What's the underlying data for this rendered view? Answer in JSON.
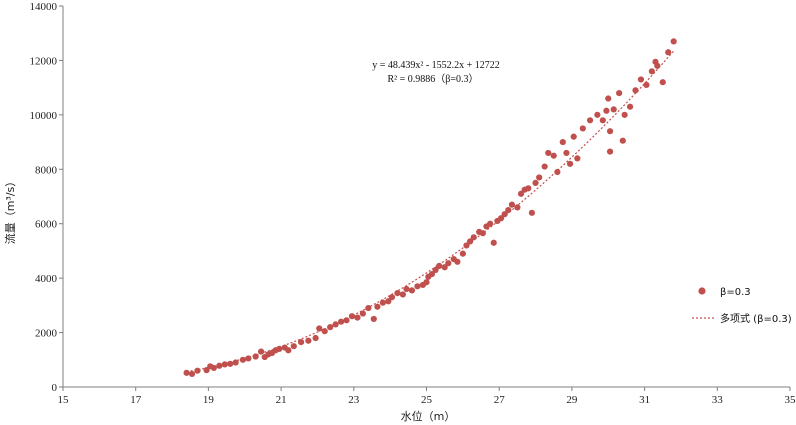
{
  "chart_data": {
    "type": "scatter",
    "xlabel": "水位（m）",
    "ylabel": "流量（m³/s）",
    "xlim": [
      15,
      35
    ],
    "ylim": [
      0,
      14000
    ],
    "x_ticks": [
      "15",
      "17",
      "19",
      "21",
      "23",
      "25",
      "27",
      "29",
      "31",
      "33",
      "35"
    ],
    "y_ticks": [
      "0",
      "2000",
      "4000",
      "6000",
      "8000",
      "10000",
      "12000",
      "14000"
    ],
    "equation": "y = 48.439x² - 1552.2x + 12722",
    "r_squared": "R² = 0.9886（β=0.3）",
    "grid": false,
    "legend_position": "right",
    "colors": {
      "points": "#c0504d",
      "trend": "#c0504d"
    },
    "series": [
      {
        "name": "β=0.3",
        "type": "scatter",
        "points": [
          [
            18.4,
            520
          ],
          [
            18.55,
            480
          ],
          [
            18.7,
            600
          ],
          [
            18.95,
            620
          ],
          [
            19.05,
            760
          ],
          [
            19.15,
            700
          ],
          [
            19.3,
            780
          ],
          [
            19.45,
            830
          ],
          [
            19.6,
            850
          ],
          [
            19.75,
            900
          ],
          [
            19.95,
            1000
          ],
          [
            20.1,
            1050
          ],
          [
            20.3,
            1120
          ],
          [
            20.45,
            1300
          ],
          [
            20.55,
            1100
          ],
          [
            20.65,
            1200
          ],
          [
            20.75,
            1250
          ],
          [
            20.85,
            1350
          ],
          [
            20.95,
            1400
          ],
          [
            21.1,
            1450
          ],
          [
            21.2,
            1350
          ],
          [
            21.35,
            1500
          ],
          [
            21.55,
            1650
          ],
          [
            21.75,
            1700
          ],
          [
            21.95,
            1800
          ],
          [
            22.05,
            2150
          ],
          [
            22.2,
            2050
          ],
          [
            22.35,
            2200
          ],
          [
            22.5,
            2300
          ],
          [
            22.65,
            2400
          ],
          [
            22.8,
            2450
          ],
          [
            22.95,
            2600
          ],
          [
            23.1,
            2550
          ],
          [
            23.25,
            2700
          ],
          [
            23.4,
            2900
          ],
          [
            23.55,
            2500
          ],
          [
            23.65,
            2950
          ],
          [
            23.8,
            3100
          ],
          [
            23.95,
            3150
          ],
          [
            24.05,
            3300
          ],
          [
            24.2,
            3450
          ],
          [
            24.35,
            3400
          ],
          [
            24.45,
            3600
          ],
          [
            24.6,
            3550
          ],
          [
            24.75,
            3700
          ],
          [
            24.9,
            3750
          ],
          [
            25.0,
            3850
          ],
          [
            25.05,
            4050
          ],
          [
            25.15,
            4150
          ],
          [
            25.25,
            4300
          ],
          [
            25.35,
            4450
          ],
          [
            25.5,
            4400
          ],
          [
            25.6,
            4550
          ],
          [
            25.75,
            4700
          ],
          [
            25.85,
            4600
          ],
          [
            26.0,
            4900
          ],
          [
            26.1,
            5200
          ],
          [
            26.2,
            5350
          ],
          [
            26.3,
            5500
          ],
          [
            26.45,
            5700
          ],
          [
            26.55,
            5650
          ],
          [
            26.65,
            5900
          ],
          [
            26.75,
            6000
          ],
          [
            26.85,
            5300
          ],
          [
            26.95,
            6100
          ],
          [
            27.05,
            6200
          ],
          [
            27.15,
            6350
          ],
          [
            27.25,
            6500
          ],
          [
            27.35,
            6700
          ],
          [
            27.5,
            6600
          ],
          [
            27.6,
            7100
          ],
          [
            27.7,
            7250
          ],
          [
            27.8,
            7300
          ],
          [
            27.9,
            6400
          ],
          [
            28.0,
            7500
          ],
          [
            28.1,
            7700
          ],
          [
            28.25,
            8100
          ],
          [
            28.35,
            8600
          ],
          [
            28.5,
            8500
          ],
          [
            28.6,
            7900
          ],
          [
            28.75,
            9000
          ],
          [
            28.85,
            8600
          ],
          [
            28.95,
            8200
          ],
          [
            29.05,
            9200
          ],
          [
            29.15,
            8400
          ],
          [
            29.3,
            9500
          ],
          [
            29.5,
            9800
          ],
          [
            29.7,
            10000
          ],
          [
            29.85,
            9800
          ],
          [
            30.0,
            10600
          ],
          [
            30.05,
            9400
          ],
          [
            30.15,
            10200
          ],
          [
            30.3,
            10800
          ],
          [
            30.45,
            10000
          ],
          [
            30.6,
            10300
          ],
          [
            30.75,
            10900
          ],
          [
            30.9,
            11300
          ],
          [
            31.05,
            11100
          ],
          [
            31.2,
            11600
          ],
          [
            31.35,
            11800
          ],
          [
            31.5,
            11200
          ],
          [
            31.65,
            12300
          ],
          [
            31.8,
            12700
          ],
          [
            30.05,
            8650
          ],
          [
            30.4,
            9050
          ],
          [
            29.95,
            10150
          ],
          [
            31.3,
            11950
          ]
        ]
      },
      {
        "name": "多项式 (β=0.3)",
        "type": "poly2",
        "coefficients": [
          48.439,
          -1552.2,
          12722
        ],
        "x_range": [
          18.4,
          31.8
        ]
      }
    ]
  }
}
